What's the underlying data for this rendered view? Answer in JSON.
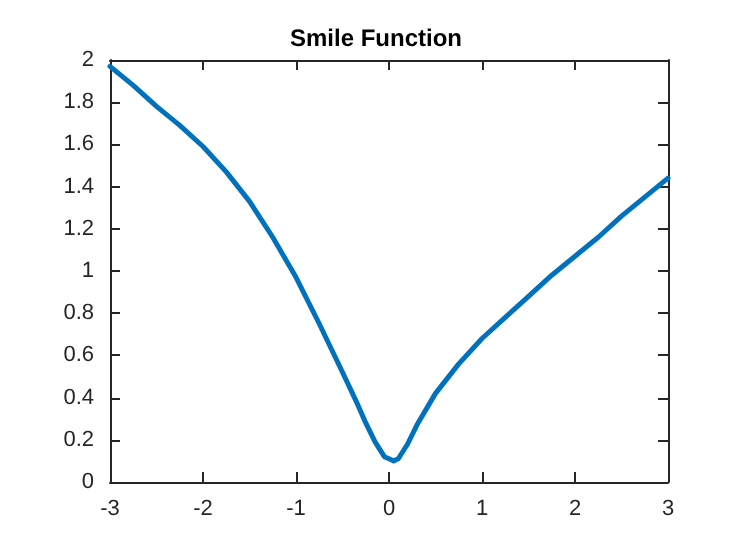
{
  "chart_data": {
    "type": "line",
    "title": "Smile Function",
    "x": [
      -3,
      -2.75,
      -2.5,
      -2.25,
      -2,
      -1.75,
      -1.5,
      -1.25,
      -1,
      -0.75,
      -0.5,
      -0.35,
      -0.25,
      -0.15,
      -0.05,
      0,
      0.05,
      0.1,
      0.2,
      0.3,
      0.5,
      0.75,
      1,
      1.25,
      1.5,
      1.75,
      2,
      2.25,
      2.5,
      2.75,
      3
    ],
    "series": [
      {
        "color": "#0072bd",
        "values": [
          1.97,
          1.88,
          1.78,
          1.69,
          1.59,
          1.47,
          1.33,
          1.16,
          0.97,
          0.75,
          0.52,
          0.38,
          0.28,
          0.19,
          0.12,
          0.11,
          0.1,
          0.11,
          0.18,
          0.27,
          0.42,
          0.56,
          0.68,
          0.78,
          0.88,
          0.98,
          1.07,
          1.16,
          1.26,
          1.35,
          1.44
        ]
      }
    ],
    "xlim": [
      -3,
      3
    ],
    "xticks": [
      -3,
      -2,
      -1,
      0,
      1,
      2,
      3
    ],
    "ylim": [
      0,
      2
    ],
    "yticks": [
      0,
      0.2,
      0.4,
      0.6,
      0.8,
      1,
      1.2,
      1.4,
      1.6,
      1.8,
      2
    ],
    "grid": false,
    "marker": "none",
    "line_style": "solid"
  }
}
